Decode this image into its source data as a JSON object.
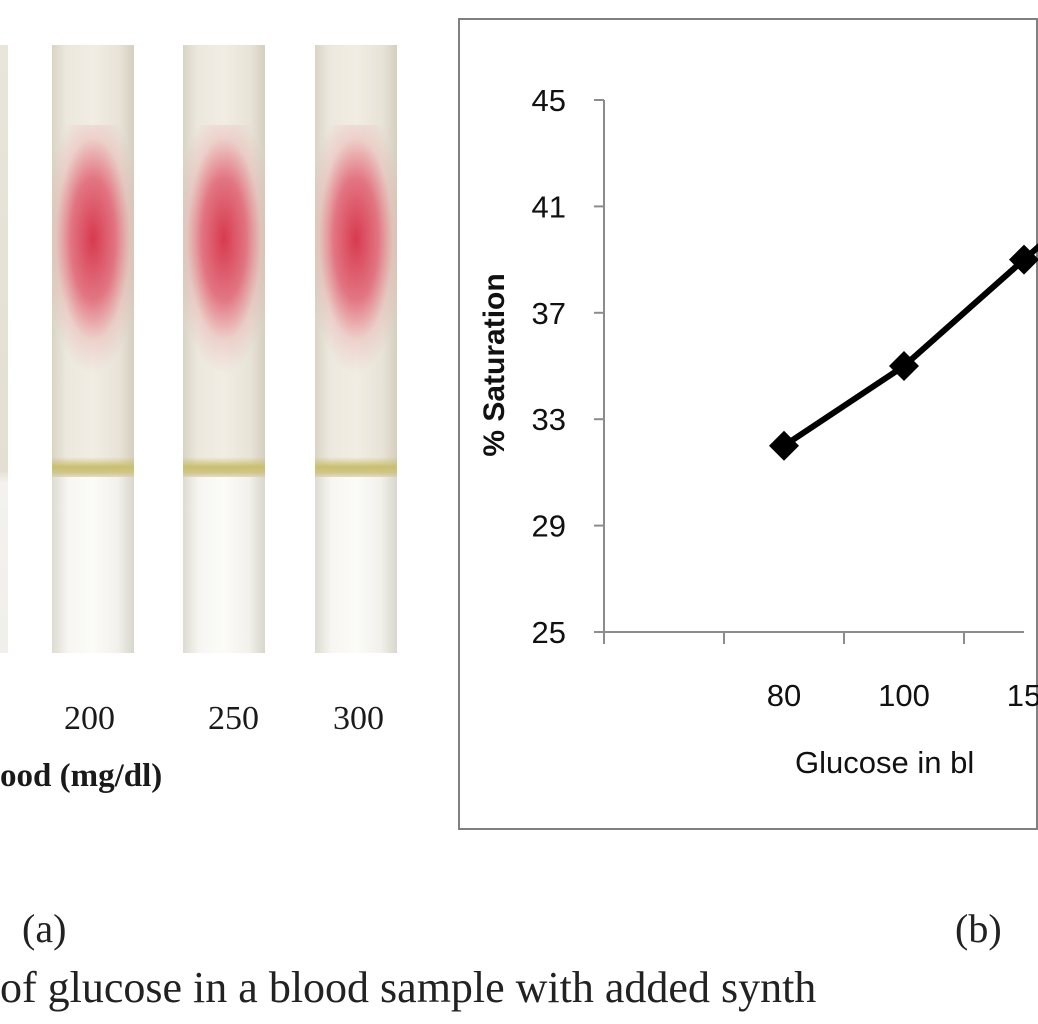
{
  "panel_a": {
    "strips": [
      {
        "label": "200"
      },
      {
        "label": "250"
      },
      {
        "label": "300"
      }
    ],
    "x_title": "ood (mg/dl)",
    "panel_label": "(a)"
  },
  "panel_b": {
    "panel_label": "(b)"
  },
  "caption": "of glucose in a blood sample  with added synth",
  "chart_data": {
    "type": "line",
    "title": "",
    "ylabel": "% Saturation",
    "xlabel": "Glucose  in bl",
    "ylim": [
      25,
      45
    ],
    "yticks": [
      25,
      29,
      33,
      37,
      41,
      45
    ],
    "categories": [
      "80",
      "100",
      "15"
    ],
    "series": [
      {
        "values": [
          32,
          35,
          39
        ]
      }
    ],
    "marker": "diamond",
    "line_color": "#000000",
    "grid": false
  }
}
